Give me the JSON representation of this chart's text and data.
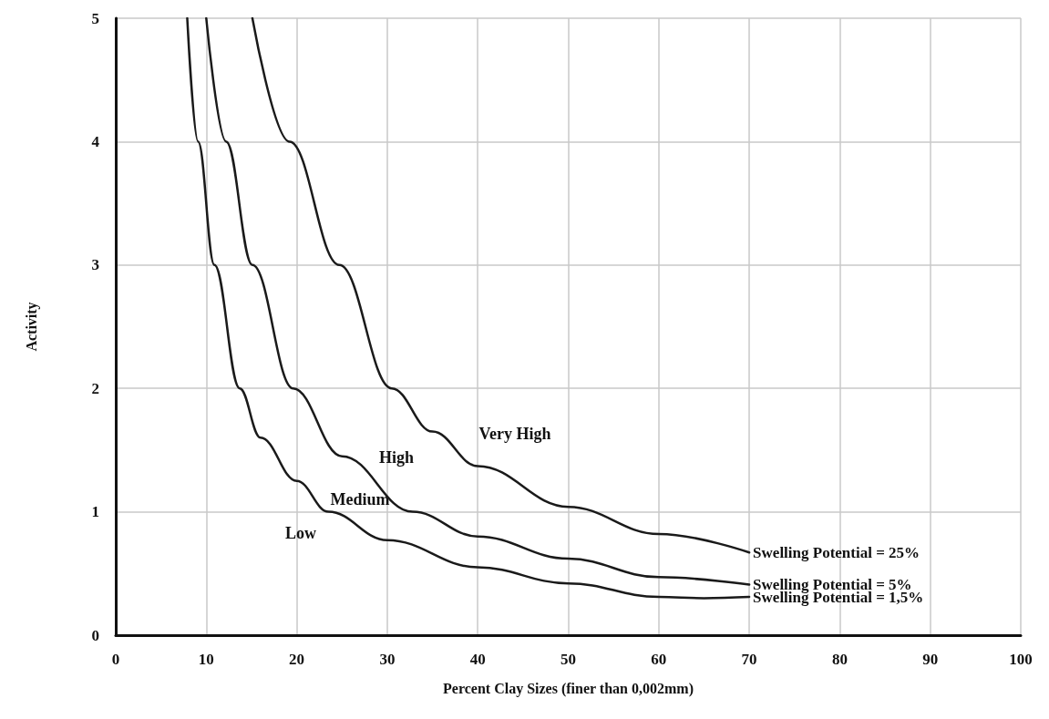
{
  "chart_data": {
    "type": "line",
    "xlabel": "Percent Clay Sizes (finer than 0,002mm)",
    "ylabel": "Activity",
    "xlim": [
      0,
      100
    ],
    "xticks": [
      0,
      10,
      20,
      30,
      40,
      50,
      60,
      70,
      80,
      90,
      100
    ],
    "ylim": [
      0,
      5
    ],
    "yticks": [
      0,
      1,
      2,
      3,
      4,
      5
    ],
    "grid": true,
    "legend": false,
    "marker": "none",
    "line_style": "solid",
    "series": [
      {
        "name": "Swelling Potential = 25%",
        "color": "#1a1a1a",
        "x": [
          15.1,
          19.2,
          24.7,
          30.5,
          35,
          40,
          50,
          60,
          70
        ],
        "values": [
          5,
          4,
          3,
          2,
          1.65,
          1.37,
          1.04,
          0.82,
          0.67
        ]
      },
      {
        "name": "Swelling Potential = 5%",
        "color": "#1a1a1a",
        "x": [
          10,
          12.2,
          15.1,
          19.6,
          25,
          32.8,
          40,
          50,
          60,
          70
        ],
        "values": [
          5,
          4,
          3,
          2,
          1.45,
          1.0,
          0.8,
          0.62,
          0.47,
          0.41
        ]
      },
      {
        "name": "Swelling Potential = 1,5%",
        "color": "#1a1a1a",
        "x": [
          7.9,
          9.1,
          10.9,
          13.7,
          16,
          20,
          23.5,
          30,
          40,
          50,
          60,
          65,
          70
        ],
        "values": [
          5,
          4,
          3,
          2,
          1.6,
          1.25,
          1.0,
          0.77,
          0.55,
          0.42,
          0.31,
          0.3,
          0.31
        ]
      }
    ],
    "annotations": [
      "Low",
      "Medium",
      "High",
      "Very High"
    ]
  }
}
